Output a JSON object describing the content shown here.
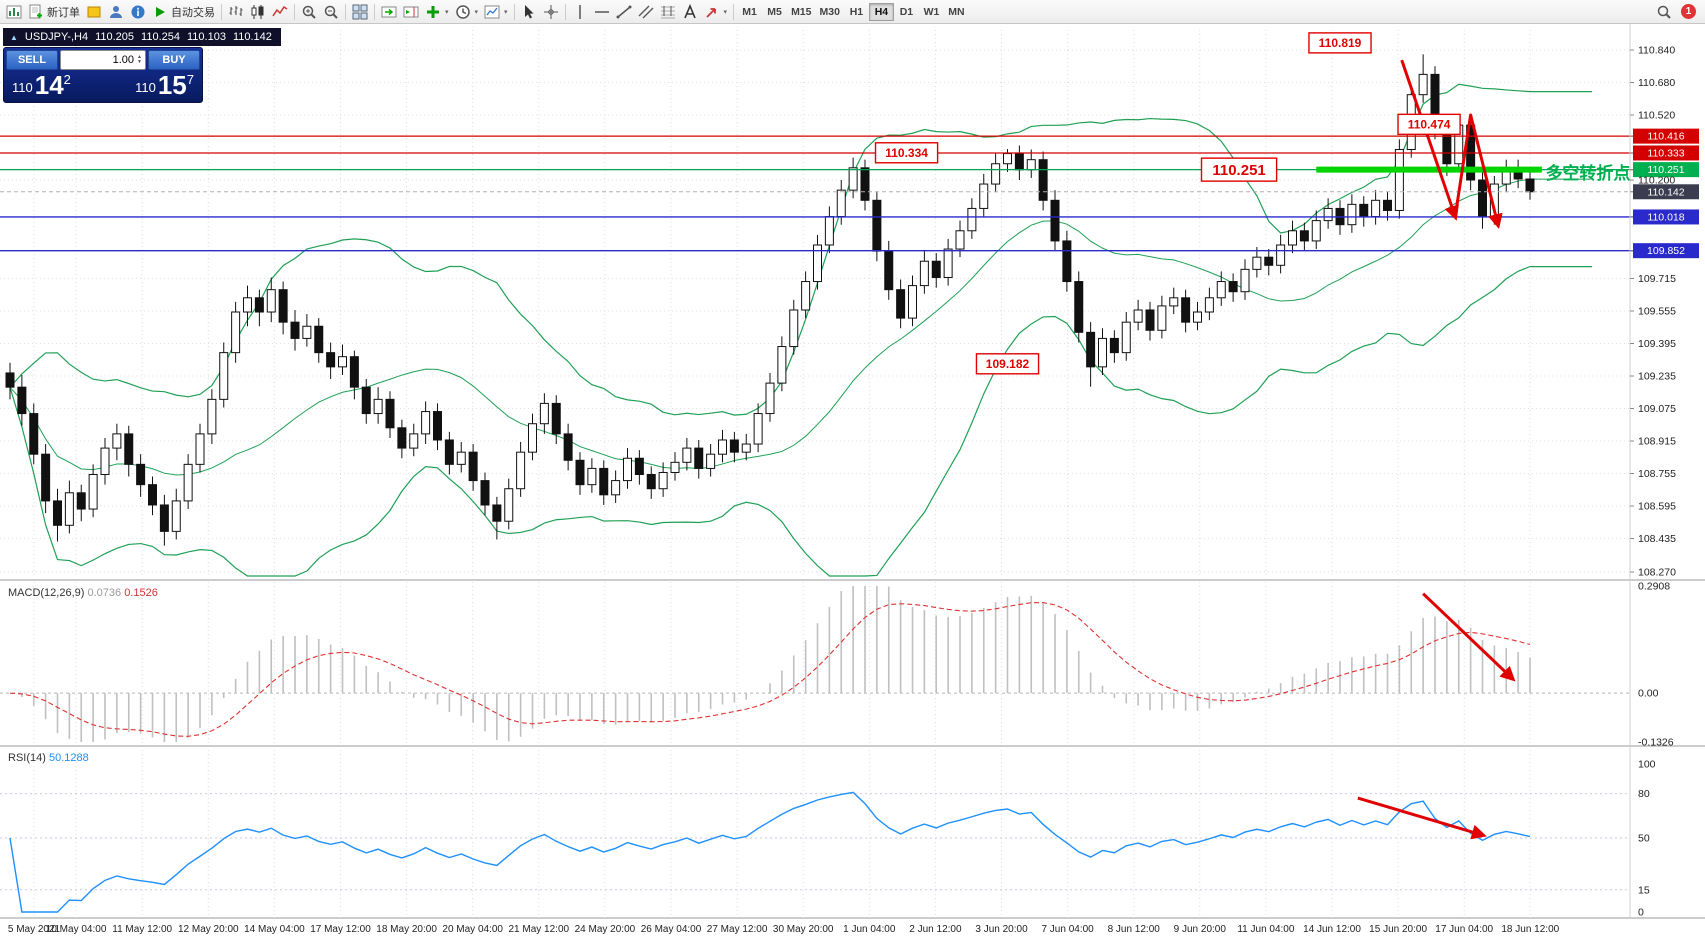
{
  "toolbar": {
    "groups": [
      {
        "items": [
          {
            "name": "new-chart-button",
            "icon": "chart-plus"
          },
          {
            "name": "new-order-button",
            "icon": "doc-plus",
            "label": "新订单"
          },
          {
            "name": "mql5-market-button",
            "icon": "box-yellow"
          },
          {
            "name": "profile-button",
            "icon": "person"
          },
          {
            "name": "news-button",
            "icon": "info"
          },
          {
            "name": "autotrade-button",
            "icon": "play",
            "label": "自动交易"
          }
        ]
      },
      {
        "items": [
          {
            "name": "bar-chart-button",
            "icon": "bars"
          },
          {
            "name": "candle-chart-button",
            "icon": "candles"
          },
          {
            "name": "line-chart-button",
            "icon": "linechart"
          }
        ]
      },
      {
        "items": [
          {
            "name": "zoom-in-button",
            "icon": "zoom-in"
          },
          {
            "name": "zoom-out-button",
            "icon": "zoom-out"
          }
        ]
      },
      {
        "items": [
          {
            "name": "tile-windows-button",
            "icon": "tile"
          }
        ]
      },
      {
        "items": [
          {
            "name": "auto-scroll-button",
            "icon": "autoscroll"
          },
          {
            "name": "chart-shift-button",
            "icon": "shift"
          },
          {
            "name": "indicators-button",
            "icon": "ind-plus",
            "caret": true
          },
          {
            "name": "periods-button",
            "icon": "clock",
            "caret": true
          },
          {
            "name": "templates-button",
            "icon": "template",
            "caret": true
          }
        ]
      },
      {
        "items": [
          {
            "name": "cursor-button",
            "icon": "cursor"
          },
          {
            "name": "crosshair-button",
            "icon": "crosshair"
          }
        ]
      },
      {
        "items": [
          {
            "name": "vertical-line-button",
            "icon": "vline"
          },
          {
            "name": "horizontal-line-button",
            "icon": "hline"
          },
          {
            "name": "trendline-button",
            "icon": "trendline"
          },
          {
            "name": "channel-button",
            "icon": "channel"
          },
          {
            "name": "fibonacci-button",
            "icon": "fibo"
          },
          {
            "name": "text-label-button",
            "icon": "text"
          },
          {
            "name": "shapes-button",
            "icon": "shapes",
            "caret": true
          }
        ]
      }
    ],
    "timeframes": [
      "M1",
      "M5",
      "M15",
      "M30",
      "H1",
      "H4",
      "D1",
      "W1",
      "MN"
    ],
    "active_timeframe": "H4",
    "badge": "1"
  },
  "symbol_bar": {
    "symbol": "USDJPY-,H4",
    "open": "110.205",
    "high": "110.254",
    "low": "110.103",
    "close": "110.142"
  },
  "trade_panel": {
    "sell_label": "SELL",
    "buy_label": "BUY",
    "volume": "1.00",
    "sell_small": "110",
    "sell_big": "14",
    "sell_sup": "2",
    "buy_small": "110",
    "buy_big": "15",
    "buy_sup": "7"
  },
  "chart_data": {
    "type": "candlestick",
    "title": "USDJPY-,H4",
    "symbol": "USDJPY",
    "timeframe": "H4",
    "indicators": [
      "Bollinger Bands",
      "MACD(12,26,9)",
      "RSI(14)"
    ],
    "ylim": [
      108.27,
      110.84
    ],
    "y_axis_ticks": [
      {
        "label": "110.840"
      },
      {
        "label": "110.680"
      },
      {
        "label": "110.520"
      },
      {
        "label": "110.416",
        "tag": "red"
      },
      {
        "label": "110.333",
        "tag": "red"
      },
      {
        "label": "110.251",
        "tag": "green"
      },
      {
        "label": "110.200"
      },
      {
        "label": "110.142",
        "tag": "dark"
      },
      {
        "label": "110.018",
        "tag": "blue"
      },
      {
        "label": "109.852",
        "tag": "blue"
      },
      {
        "label": "109.715"
      },
      {
        "label": "109.555"
      },
      {
        "label": "109.395"
      },
      {
        "label": "109.235"
      },
      {
        "label": "109.075"
      },
      {
        "label": "108.915"
      },
      {
        "label": "108.755"
      },
      {
        "label": "108.595"
      },
      {
        "label": "108.435"
      },
      {
        "label": "108.270"
      }
    ],
    "x_axis_labels": [
      "5 May 2021",
      "10 May 04:00",
      "11 May 12:00",
      "12 May 20:00",
      "14 May 04:00",
      "17 May 12:00",
      "18 May 20:00",
      "20 May 04:00",
      "21 May 12:00",
      "24 May 20:00",
      "26 May 04:00",
      "27 May 12:00",
      "30 May 20:00",
      "1 Jun 04:00",
      "2 Jun 12:00",
      "3 Jun 20:00",
      "7 Jun 04:00",
      "8 Jun 12:00",
      "9 Jun 20:00",
      "11 Jun 04:00",
      "14 Jun 12:00",
      "15 Jun 20:00",
      "17 Jun 04:00",
      "18 Jun 12:00"
    ],
    "levels": [
      {
        "price": 110.416,
        "color": "#d40000"
      },
      {
        "price": 110.333,
        "color": "#d40000"
      },
      {
        "price": 110.251,
        "color": "#00a650"
      },
      {
        "price": 110.018,
        "color": "#2929cc"
      },
      {
        "price": 109.852,
        "color": "#2929cc"
      }
    ],
    "current_price": 110.142,
    "candles": [
      [
        109.25,
        109.3,
        109.12,
        109.18
      ],
      [
        109.18,
        109.24,
        108.99,
        109.05
      ],
      [
        109.05,
        109.1,
        108.8,
        108.85
      ],
      [
        108.85,
        108.9,
        108.56,
        108.62
      ],
      [
        108.62,
        108.68,
        108.42,
        108.5
      ],
      [
        108.5,
        108.72,
        108.46,
        108.66
      ],
      [
        108.66,
        108.7,
        108.52,
        108.58
      ],
      [
        108.58,
        108.8,
        108.54,
        108.75
      ],
      [
        108.75,
        108.93,
        108.7,
        108.88
      ],
      [
        108.88,
        109.0,
        108.82,
        108.95
      ],
      [
        108.95,
        108.99,
        108.74,
        108.8
      ],
      [
        108.8,
        108.85,
        108.64,
        108.7
      ],
      [
        108.7,
        108.74,
        108.55,
        108.6
      ],
      [
        108.6,
        108.65,
        108.4,
        108.47
      ],
      [
        108.47,
        108.68,
        108.43,
        108.62
      ],
      [
        108.62,
        108.85,
        108.58,
        108.8
      ],
      [
        108.8,
        109.0,
        108.76,
        108.95
      ],
      [
        108.95,
        109.17,
        108.9,
        109.12
      ],
      [
        109.12,
        109.4,
        109.08,
        109.35
      ],
      [
        109.35,
        109.6,
        109.3,
        109.55
      ],
      [
        109.55,
        109.68,
        109.48,
        109.62
      ],
      [
        109.62,
        109.66,
        109.48,
        109.55
      ],
      [
        109.55,
        109.72,
        109.5,
        109.66
      ],
      [
        109.66,
        109.7,
        109.44,
        109.5
      ],
      [
        109.5,
        109.56,
        109.36,
        109.42
      ],
      [
        109.42,
        109.54,
        109.38,
        109.48
      ],
      [
        109.48,
        109.52,
        109.3,
        109.35
      ],
      [
        109.35,
        109.4,
        109.22,
        109.28
      ],
      [
        109.28,
        109.39,
        109.24,
        109.33
      ],
      [
        109.33,
        109.36,
        109.12,
        109.18
      ],
      [
        109.18,
        109.22,
        109.0,
        109.05
      ],
      [
        109.05,
        109.18,
        109.0,
        109.12
      ],
      [
        109.12,
        109.16,
        108.93,
        108.98
      ],
      [
        108.98,
        109.02,
        108.83,
        108.88
      ],
      [
        108.88,
        109.0,
        108.84,
        108.95
      ],
      [
        108.95,
        109.11,
        108.9,
        109.06
      ],
      [
        109.06,
        109.1,
        108.87,
        108.92
      ],
      [
        108.92,
        108.96,
        108.75,
        108.8
      ],
      [
        108.8,
        108.91,
        108.76,
        108.86
      ],
      [
        108.86,
        108.9,
        108.67,
        108.72
      ],
      [
        108.72,
        108.76,
        108.55,
        108.6
      ],
      [
        108.6,
        108.64,
        108.43,
        108.52
      ],
      [
        108.52,
        108.73,
        108.48,
        108.68
      ],
      [
        108.68,
        108.91,
        108.64,
        108.86
      ],
      [
        108.86,
        109.05,
        108.82,
        109.0
      ],
      [
        109.0,
        109.15,
        108.95,
        109.1
      ],
      [
        109.1,
        109.14,
        108.9,
        108.95
      ],
      [
        108.95,
        109.0,
        108.77,
        108.82
      ],
      [
        108.82,
        108.86,
        108.65,
        108.7
      ],
      [
        108.7,
        108.83,
        108.66,
        108.78
      ],
      [
        108.78,
        108.82,
        108.6,
        108.65
      ],
      [
        108.65,
        108.77,
        108.61,
        108.72
      ],
      [
        108.72,
        108.88,
        108.68,
        108.83
      ],
      [
        108.83,
        108.87,
        108.7,
        108.75
      ],
      [
        108.75,
        108.79,
        108.63,
        108.68
      ],
      [
        108.68,
        108.81,
        108.64,
        108.76
      ],
      [
        108.76,
        108.86,
        108.72,
        108.81
      ],
      [
        108.81,
        108.93,
        108.77,
        108.88
      ],
      [
        108.88,
        108.92,
        108.73,
        108.78
      ],
      [
        108.78,
        108.9,
        108.74,
        108.85
      ],
      [
        108.85,
        108.97,
        108.81,
        108.92
      ],
      [
        108.92,
        108.96,
        108.81,
        108.86
      ],
      [
        108.86,
        108.95,
        108.82,
        108.9
      ],
      [
        108.9,
        109.1,
        108.86,
        109.05
      ],
      [
        109.05,
        109.25,
        109.01,
        109.2
      ],
      [
        109.2,
        109.43,
        109.16,
        109.38
      ],
      [
        109.38,
        109.61,
        109.34,
        109.56
      ],
      [
        109.56,
        109.75,
        109.52,
        109.7
      ],
      [
        109.7,
        109.93,
        109.66,
        109.88
      ],
      [
        109.88,
        110.07,
        109.84,
        110.02
      ],
      [
        110.02,
        110.2,
        109.98,
        110.15
      ],
      [
        110.15,
        110.31,
        110.11,
        110.26
      ],
      [
        110.26,
        110.3,
        110.05,
        110.1
      ],
      [
        110.1,
        110.14,
        109.8,
        109.85
      ],
      [
        109.85,
        109.9,
        109.61,
        109.66
      ],
      [
        109.66,
        109.71,
        109.47,
        109.52
      ],
      [
        109.52,
        109.73,
        109.48,
        109.68
      ],
      [
        109.68,
        109.85,
        109.64,
        109.8
      ],
      [
        109.8,
        109.84,
        109.67,
        109.72
      ],
      [
        109.72,
        109.91,
        109.68,
        109.86
      ],
      [
        109.86,
        110.0,
        109.82,
        109.95
      ],
      [
        109.95,
        110.11,
        109.91,
        110.06
      ],
      [
        110.06,
        110.23,
        110.02,
        110.18
      ],
      [
        110.18,
        110.33,
        110.14,
        110.28
      ],
      [
        110.28,
        110.352,
        110.24,
        110.33
      ],
      [
        110.33,
        110.37,
        110.2,
        110.25
      ],
      [
        110.25,
        110.35,
        110.21,
        110.3
      ],
      [
        110.3,
        110.34,
        110.05,
        110.1
      ],
      [
        110.1,
        110.15,
        109.85,
        109.9
      ],
      [
        109.9,
        109.95,
        109.65,
        109.7
      ],
      [
        109.7,
        109.75,
        109.4,
        109.45
      ],
      [
        109.45,
        109.5,
        109.182,
        109.28
      ],
      [
        109.28,
        109.47,
        109.24,
        109.42
      ],
      [
        109.42,
        109.46,
        109.3,
        109.35
      ],
      [
        109.35,
        109.55,
        109.31,
        109.5
      ],
      [
        109.5,
        109.61,
        109.46,
        109.56
      ],
      [
        109.56,
        109.6,
        109.41,
        109.46
      ],
      [
        109.46,
        109.63,
        109.42,
        109.58
      ],
      [
        109.58,
        109.67,
        109.54,
        109.62
      ],
      [
        109.62,
        109.66,
        109.45,
        109.5
      ],
      [
        109.5,
        109.6,
        109.46,
        109.55
      ],
      [
        109.55,
        109.67,
        109.51,
        109.62
      ],
      [
        109.62,
        109.75,
        109.58,
        109.7
      ],
      [
        109.7,
        109.74,
        109.6,
        109.65
      ],
      [
        109.65,
        109.81,
        109.61,
        109.76
      ],
      [
        109.76,
        109.87,
        109.72,
        109.82
      ],
      [
        109.82,
        109.86,
        109.73,
        109.78
      ],
      [
        109.78,
        109.93,
        109.74,
        109.88
      ],
      [
        109.88,
        110.0,
        109.84,
        109.95
      ],
      [
        109.95,
        109.99,
        109.85,
        109.9
      ],
      [
        109.9,
        110.05,
        109.86,
        110.0
      ],
      [
        110.0,
        110.11,
        109.96,
        110.06
      ],
      [
        110.06,
        110.1,
        109.93,
        109.98
      ],
      [
        109.98,
        110.13,
        109.94,
        110.08
      ],
      [
        110.08,
        110.12,
        109.97,
        110.02
      ],
      [
        110.02,
        110.15,
        109.98,
        110.1
      ],
      [
        110.1,
        110.14,
        110.0,
        110.05
      ],
      [
        110.05,
        110.4,
        110.01,
        110.35
      ],
      [
        110.35,
        110.67,
        110.31,
        110.62
      ],
      [
        110.62,
        110.819,
        110.58,
        110.72
      ],
      [
        110.72,
        110.76,
        110.4,
        110.45
      ],
      [
        110.45,
        110.5,
        110.22,
        110.28
      ],
      [
        110.28,
        110.5,
        110.24,
        110.47
      ],
      [
        110.47,
        110.51,
        110.15,
        110.2
      ],
      [
        110.2,
        110.24,
        109.96,
        110.02
      ],
      [
        110.02,
        110.22,
        109.98,
        110.18
      ],
      [
        110.18,
        110.3,
        110.14,
        110.26
      ],
      [
        110.26,
        110.3,
        110.16,
        110.205
      ],
      [
        110.205,
        110.254,
        110.103,
        110.142
      ]
    ]
  },
  "macd_panel": {
    "label": "MACD(12,26,9)",
    "value1": "0.0736",
    "value2": "0.1526",
    "axis_labels": [
      "0.2908",
      "0.00",
      "-0.1326"
    ],
    "range": [
      -0.1326,
      0.2908
    ]
  },
  "rsi_panel": {
    "label": "RSI(14)",
    "value": "50.1288",
    "axis_labels": [
      "100",
      "80",
      "50",
      "15",
      "0"
    ],
    "level_lines": [
      80,
      50,
      15
    ],
    "range": [
      0,
      100
    ]
  },
  "annotations": {
    "price_boxes": [
      {
        "text": "110.819",
        "bar": 112,
        "price": 110.875,
        "size": "normal"
      },
      {
        "text": "110.474",
        "bar": 119.5,
        "price": 110.474,
        "size": "normal"
      },
      {
        "text": "110.334",
        "bar": 75.5,
        "price": 110.334,
        "size": "normal"
      },
      {
        "text": "110.251",
        "bar": 103.5,
        "price": 110.251,
        "size": "large"
      },
      {
        "text": "109.182",
        "bar": 84,
        "price": 109.295,
        "size": "normal"
      }
    ],
    "support_segment": {
      "from_bar": 110,
      "to_bar": 129,
      "price": 110.251,
      "color": "#00d500"
    },
    "note": {
      "text": "多空转折点",
      "color": "#00b050",
      "bar": 129.3,
      "price": 110.205
    },
    "zigzag": [
      [
        117.2,
        110.79
      ],
      [
        121.7,
        110.02
      ],
      [
        123.0,
        110.52
      ],
      [
        125.3,
        109.98
      ]
    ],
    "macd_arrow": {
      "from": [
        119,
        0.27
      ],
      "to": [
        126.5,
        0.04
      ]
    },
    "rsi_arrow": {
      "from": [
        113.5,
        77
      ],
      "to": [
        124,
        52
      ]
    },
    "arrow_color": "#e00000"
  }
}
